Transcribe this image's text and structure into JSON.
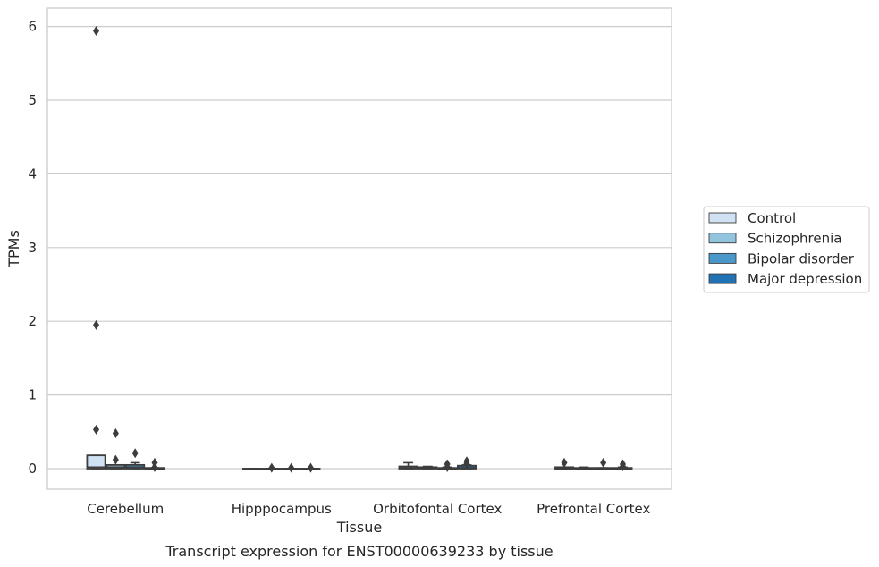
{
  "chart_data": {
    "type": "boxplot",
    "title": "",
    "caption": "Transcript expression for ENST00000639233 by tissue",
    "xlabel": "Tissue",
    "ylabel": "TPMs",
    "ylim": [
      -0.29,
      6.25
    ],
    "yticks": [
      0,
      1,
      2,
      3,
      4,
      5,
      6
    ],
    "grid": true,
    "legend_position": "right",
    "categories": [
      "Cerebellum",
      "Hipppocampus",
      "Orbitofontal Cortex",
      "Prefrontal Cortex"
    ],
    "series": [
      {
        "name": "Control",
        "color": "#cfe1f2",
        "boxes": [
          {
            "q1": 0.0,
            "median": 0.02,
            "q3": 0.18,
            "whisker_low": 0.0,
            "whisker_high": 0.18,
            "outliers": [
              0.53,
              1.95,
              5.94
            ]
          },
          {
            "q1": 0.0,
            "median": 0.0,
            "q3": 0.0,
            "whisker_low": 0.0,
            "whisker_high": 0.0,
            "outliers": []
          },
          {
            "q1": 0.0,
            "median": 0.01,
            "q3": 0.03,
            "whisker_low": 0.0,
            "whisker_high": 0.08,
            "outliers": []
          },
          {
            "q1": 0.0,
            "median": 0.0,
            "q3": 0.02,
            "whisker_low": 0.0,
            "whisker_high": 0.02,
            "outliers": [
              0.08
            ]
          }
        ]
      },
      {
        "name": "Schizophrenia",
        "color": "#93c4de",
        "boxes": [
          {
            "q1": 0.0,
            "median": 0.02,
            "q3": 0.05,
            "whisker_low": 0.0,
            "whisker_high": 0.05,
            "outliers": [
              0.12,
              0.48
            ]
          },
          {
            "q1": 0.0,
            "median": 0.0,
            "q3": 0.0,
            "whisker_low": 0.0,
            "whisker_high": 0.0,
            "outliers": [
              0.01
            ]
          },
          {
            "q1": 0.0,
            "median": 0.01,
            "q3": 0.02,
            "whisker_low": 0.0,
            "whisker_high": 0.03,
            "outliers": []
          },
          {
            "q1": 0.0,
            "median": 0.0,
            "q3": 0.01,
            "whisker_low": 0.0,
            "whisker_high": 0.02,
            "outliers": []
          }
        ]
      },
      {
        "name": "Bipolar disorder",
        "color": "#4a98c9",
        "boxes": [
          {
            "q1": 0.0,
            "median": 0.02,
            "q3": 0.05,
            "whisker_low": 0.0,
            "whisker_high": 0.08,
            "outliers": [
              0.21
            ]
          },
          {
            "q1": 0.0,
            "median": 0.0,
            "q3": 0.0,
            "whisker_low": 0.0,
            "whisker_high": 0.0,
            "outliers": [
              0.01
            ]
          },
          {
            "q1": 0.0,
            "median": 0.0,
            "q3": 0.01,
            "whisker_low": 0.0,
            "whisker_high": 0.02,
            "outliers": [
              0.02,
              0.06
            ]
          },
          {
            "q1": 0.0,
            "median": 0.0,
            "q3": 0.01,
            "whisker_low": 0.0,
            "whisker_high": 0.01,
            "outliers": [
              0.08
            ]
          }
        ]
      },
      {
        "name": "Major depression",
        "color": "#2171b5",
        "boxes": [
          {
            "q1": 0.0,
            "median": 0.0,
            "q3": 0.01,
            "whisker_low": 0.0,
            "whisker_high": 0.01,
            "outliers": [
              0.02,
              0.08
            ]
          },
          {
            "q1": 0.0,
            "median": 0.0,
            "q3": 0.0,
            "whisker_low": 0.0,
            "whisker_high": 0.0,
            "outliers": [
              0.01
            ]
          },
          {
            "q1": 0.0,
            "median": 0.01,
            "q3": 0.04,
            "whisker_low": 0.0,
            "whisker_high": 0.05,
            "outliers": [
              0.07,
              0.1
            ]
          },
          {
            "q1": 0.0,
            "median": 0.0,
            "q3": 0.01,
            "whisker_low": 0.0,
            "whisker_high": 0.02,
            "outliers": [
              0.03,
              0.06
            ]
          }
        ]
      }
    ]
  },
  "colors": {
    "grid": "#cccccc",
    "frame": "#cccccc",
    "box_edge": "#3d3d3d"
  }
}
